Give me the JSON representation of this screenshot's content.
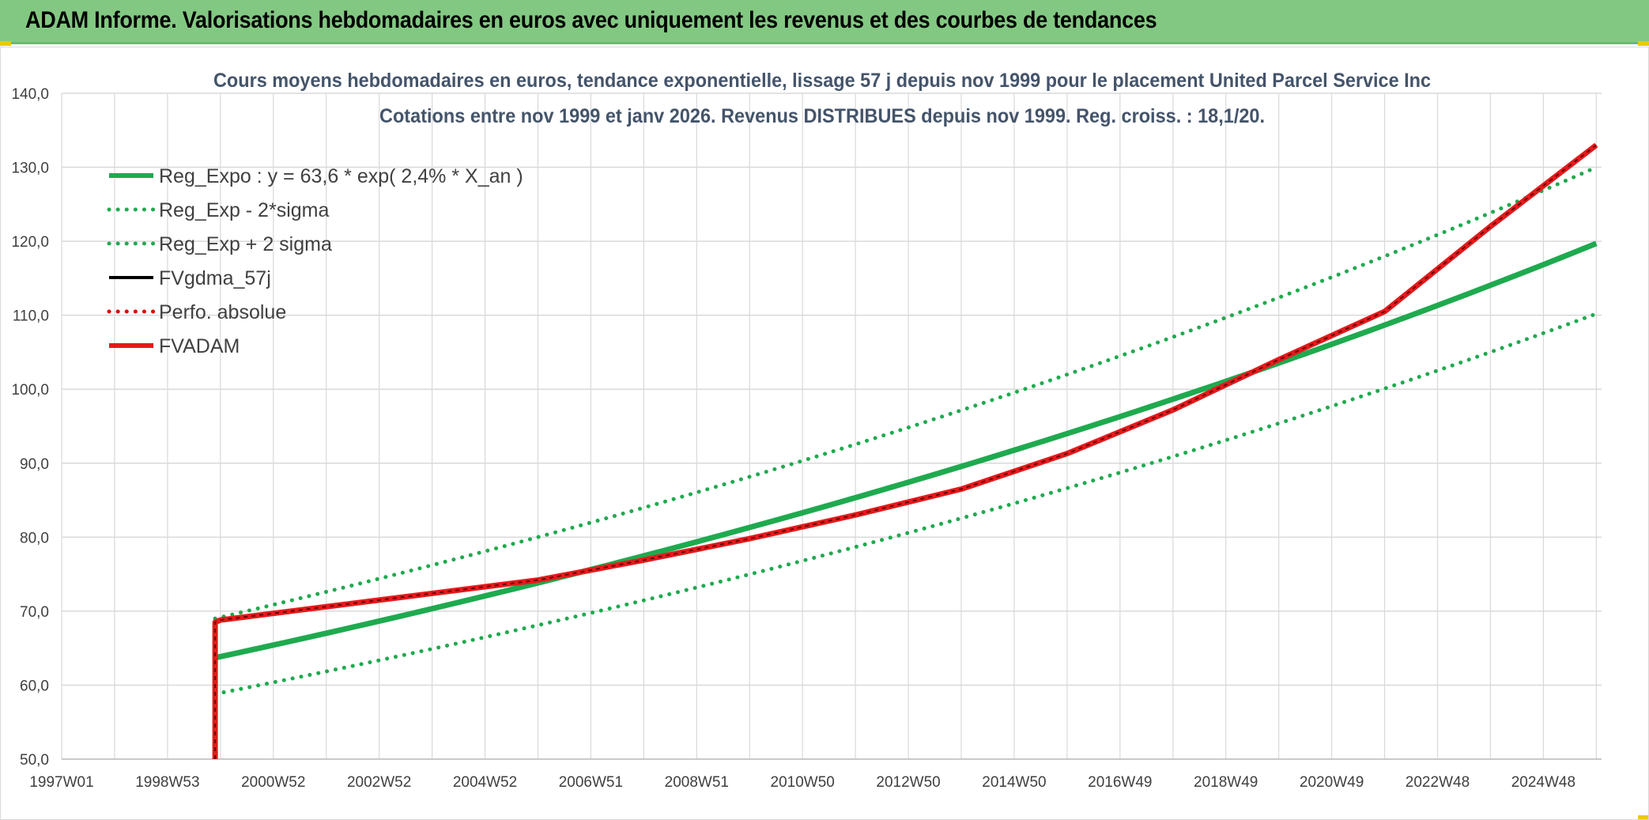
{
  "banner": {
    "title": "ADAM Informe. Valorisations hebdomadaires en euros avec uniquement les revenus et des courbes de tendances"
  },
  "colors": {
    "banner_bg": "#82c882",
    "reg_expo": "#1faa4f",
    "bands": "#1faa4f",
    "fvgdma": "#000000",
    "perfo": "#e00000",
    "fvadam": "#e41a1c",
    "grid": "#d9d9d9",
    "title": "#44546a"
  },
  "chart_data": {
    "type": "line",
    "title": "Cours moyens hebdomadaires en euros, tendance exponentielle, lissage 57 j depuis nov 1999 pour le placement United Parcel Service Inc",
    "subtitle": "Cotations entre nov 1999 et janv 2026. Revenus DISTRIBUES depuis nov 1999. Reg. croiss. : 18,1/20.",
    "xlabel": "",
    "ylabel": "",
    "xlim": [
      1997.0,
      2026.1
    ],
    "ylim": [
      50,
      140
    ],
    "y_ticks": [
      "50,0",
      "60,0",
      "70,0",
      "80,0",
      "90,0",
      "100,0",
      "110,0",
      "120,0",
      "130,0",
      "140,0"
    ],
    "x_ticks": [
      {
        "t": 1997.0,
        "label": "1997W01"
      },
      {
        "t": 1999.0,
        "label": "1998W53"
      },
      {
        "t": 2001.0,
        "label": "2000W52"
      },
      {
        "t": 2003.0,
        "label": "2002W52"
      },
      {
        "t": 2005.0,
        "label": "2004W52"
      },
      {
        "t": 2007.0,
        "label": "2006W51"
      },
      {
        "t": 2009.0,
        "label": "2008W51"
      },
      {
        "t": 2011.0,
        "label": "2010W50"
      },
      {
        "t": 2013.0,
        "label": "2012W50"
      },
      {
        "t": 2015.0,
        "label": "2014W50"
      },
      {
        "t": 2017.0,
        "label": "2016W49"
      },
      {
        "t": 2019.0,
        "label": "2018W49"
      },
      {
        "t": 2021.0,
        "label": "2020W49"
      },
      {
        "t": 2023.0,
        "label": "2022W48"
      },
      {
        "t": 2025.0,
        "label": "2024W48"
      }
    ],
    "grid": true,
    "legend_position": "top-left",
    "series": [
      {
        "name": "Reg_Expo : y = 63,6 * exp( 2,4% *  X_an )",
        "style": "solid-thick",
        "color": "#1faa4f",
        "x": [
          1999.9,
          2026.0
        ],
        "y": [
          63.7,
          119.7
        ]
      },
      {
        "name": "Reg_Exp - 2*sigma",
        "style": "dotted",
        "color": "#1faa4f",
        "x": [
          1999.9,
          2026.0
        ],
        "y": [
          58.8,
          110.2
        ]
      },
      {
        "name": "Reg_Exp + 2 sigma",
        "style": "dotted",
        "color": "#1faa4f",
        "x": [
          1999.9,
          2026.0
        ],
        "y": [
          69.0,
          130.0
        ]
      },
      {
        "name": "FVgdma_57j",
        "style": "solid",
        "color": "#000000",
        "x": [],
        "y": []
      },
      {
        "name": "Perfo. absolue",
        "style": "dotted-red",
        "color": "#e00000",
        "x": [],
        "y": []
      },
      {
        "name": "FVADAM",
        "style": "solid-thick",
        "color": "#e41a1c",
        "x": [
          1999.9,
          1999.9,
          2000.0,
          2002.0,
          2004.0,
          2006.0,
          2008.0,
          2010.0,
          2012.0,
          2014.0,
          2016.0,
          2018.0,
          2020.0,
          2022.0,
          2024.0,
          2026.0
        ],
        "y": [
          50.0,
          68.5,
          68.8,
          70.6,
          72.4,
          74.2,
          76.9,
          79.8,
          83.0,
          86.5,
          91.3,
          97.2,
          104.0,
          110.5,
          122.0,
          133.0
        ]
      }
    ]
  }
}
